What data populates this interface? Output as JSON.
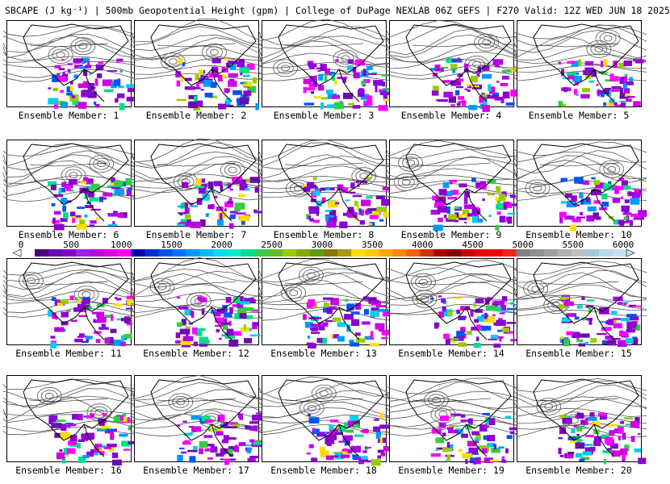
{
  "title": "SBCAPE (J kg⁻¹) | 500mb Geopotential Height (gpm) | College of DuPage NEXLAB 06Z GEFS | F270 Valid: 12Z WED JUN 18 2025",
  "colorbar": {
    "tick_labels": [
      "0",
      "500",
      "1000",
      "1500",
      "2000",
      "2500",
      "3000",
      "3500",
      "4000",
      "4500",
      "5000",
      "5500",
      "6000"
    ],
    "colors": [
      "#ffffff",
      "#4b0082",
      "#6a0dad",
      "#8b00c8",
      "#a020f0",
      "#c000e0",
      "#dd00dd",
      "#ff00ff",
      "#0000aa",
      "#0033cc",
      "#0055ee",
      "#0077ff",
      "#0099ff",
      "#00bbff",
      "#00ddee",
      "#00eecc",
      "#00dd88",
      "#33cc44",
      "#66bb22",
      "#99cc00",
      "#88aa00",
      "#669900",
      "#887700",
      "#aa9900",
      "#ffdd00",
      "#ffcc00",
      "#ffaa00",
      "#ff8800",
      "#ee6600",
      "#cc3300",
      "#aa0000",
      "#880000",
      "#cc0000",
      "#ee0000",
      "#ff0000",
      "#ff2020",
      "#808080",
      "#909090",
      "#a0a0a0",
      "#b0b0b0",
      "#c0c0c0",
      "#a0c8d8",
      "#b8d8e8",
      "#c8e0ee"
    ]
  },
  "members": [
    {
      "label": "Ensemble Member: 1"
    },
    {
      "label": "Ensemble Member: 2"
    },
    {
      "label": "Ensemble Member: 3"
    },
    {
      "label": "Ensemble Member: 4"
    },
    {
      "label": "Ensemble Member: 5"
    },
    {
      "label": "Ensemble Member: 6"
    },
    {
      "label": "Ensemble Member: 7"
    },
    {
      "label": "Ensemble Member: 8"
    },
    {
      "label": "Ensemble Member: 9"
    },
    {
      "label": "Ensemble Member: 10"
    },
    {
      "label": "Ensemble Member: 11"
    },
    {
      "label": "Ensemble Member: 12"
    },
    {
      "label": "Ensemble Member: 13"
    },
    {
      "label": "Ensemble Member: 14"
    },
    {
      "label": "Ensemble Member: 15"
    },
    {
      "label": "Ensemble Member: 16"
    },
    {
      "label": "Ensemble Member: 17"
    },
    {
      "label": "Ensemble Member: 18"
    },
    {
      "label": "Ensemble Member: 19"
    },
    {
      "label": "Ensemble Member: 20"
    }
  ]
}
